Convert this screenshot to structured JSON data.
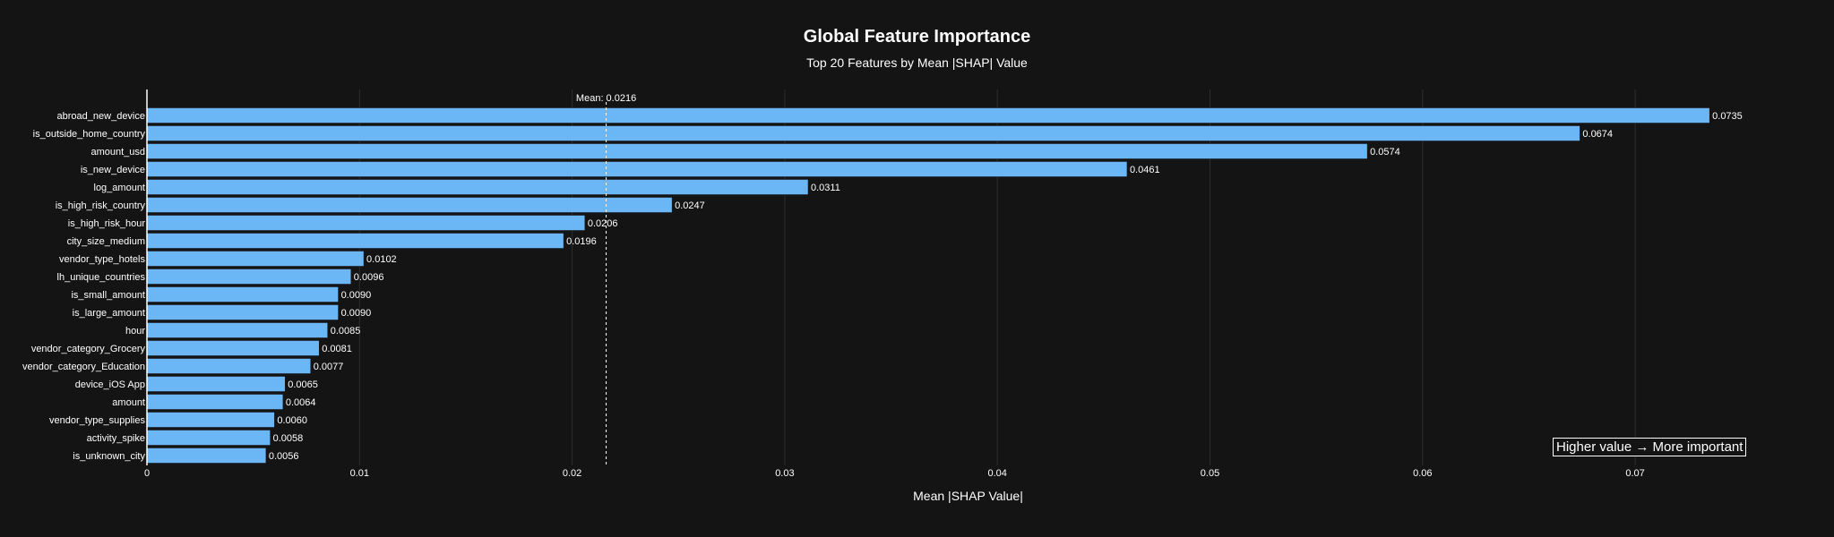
{
  "chart_data": {
    "type": "bar",
    "orientation": "horizontal",
    "title": "Global Feature Importance",
    "subtitle": "Top 20 Features by Mean |SHAP| Value",
    "xlabel": "Mean |SHAP Value|",
    "ylabel": "",
    "xlim": [
      0,
      0.0762
    ],
    "xticks": [
      0,
      0.01,
      0.02,
      0.03,
      0.04,
      0.05,
      0.06,
      0.07
    ],
    "xtick_labels": [
      "0",
      "0.01",
      "0.02",
      "0.03",
      "0.04",
      "0.05",
      "0.06",
      "0.07"
    ],
    "grid": true,
    "bar_color": "#6bb6f5",
    "background_color": "#141414",
    "grid_color": "#2e2e2e",
    "mean_line": {
      "value": 0.0216,
      "label": "Mean: 0.0216"
    },
    "annotation": "Higher value → More important",
    "categories": [
      "abroad_new_device",
      "is_outside_home_country",
      "amount_usd",
      "is_new_device",
      "log_amount",
      "is_high_risk_country",
      "is_high_risk_hour",
      "city_size_medium",
      "vendor_type_hotels",
      "lh_unique_countries",
      "is_small_amount",
      "is_large_amount",
      "hour",
      "vendor_category_Grocery",
      "vendor_category_Education",
      "device_iOS App",
      "amount",
      "vendor_type_supplies",
      "activity_spike",
      "is_unknown_city"
    ],
    "values": [
      0.0735,
      0.0674,
      0.0574,
      0.0461,
      0.0311,
      0.0247,
      0.0206,
      0.0196,
      0.0102,
      0.0096,
      0.009,
      0.009,
      0.0085,
      0.0081,
      0.0077,
      0.0065,
      0.0064,
      0.006,
      0.0058,
      0.0056
    ],
    "value_labels": [
      "0.0735",
      "0.0674",
      "0.0574",
      "0.0461",
      "0.0311",
      "0.0247",
      "0.0206",
      "0.0196",
      "0.0102",
      "0.0096",
      "0.0090",
      "0.0090",
      "0.0085",
      "0.0081",
      "0.0077",
      "0.0065",
      "0.0064",
      "0.0060",
      "0.0058",
      "0.0056"
    ]
  }
}
